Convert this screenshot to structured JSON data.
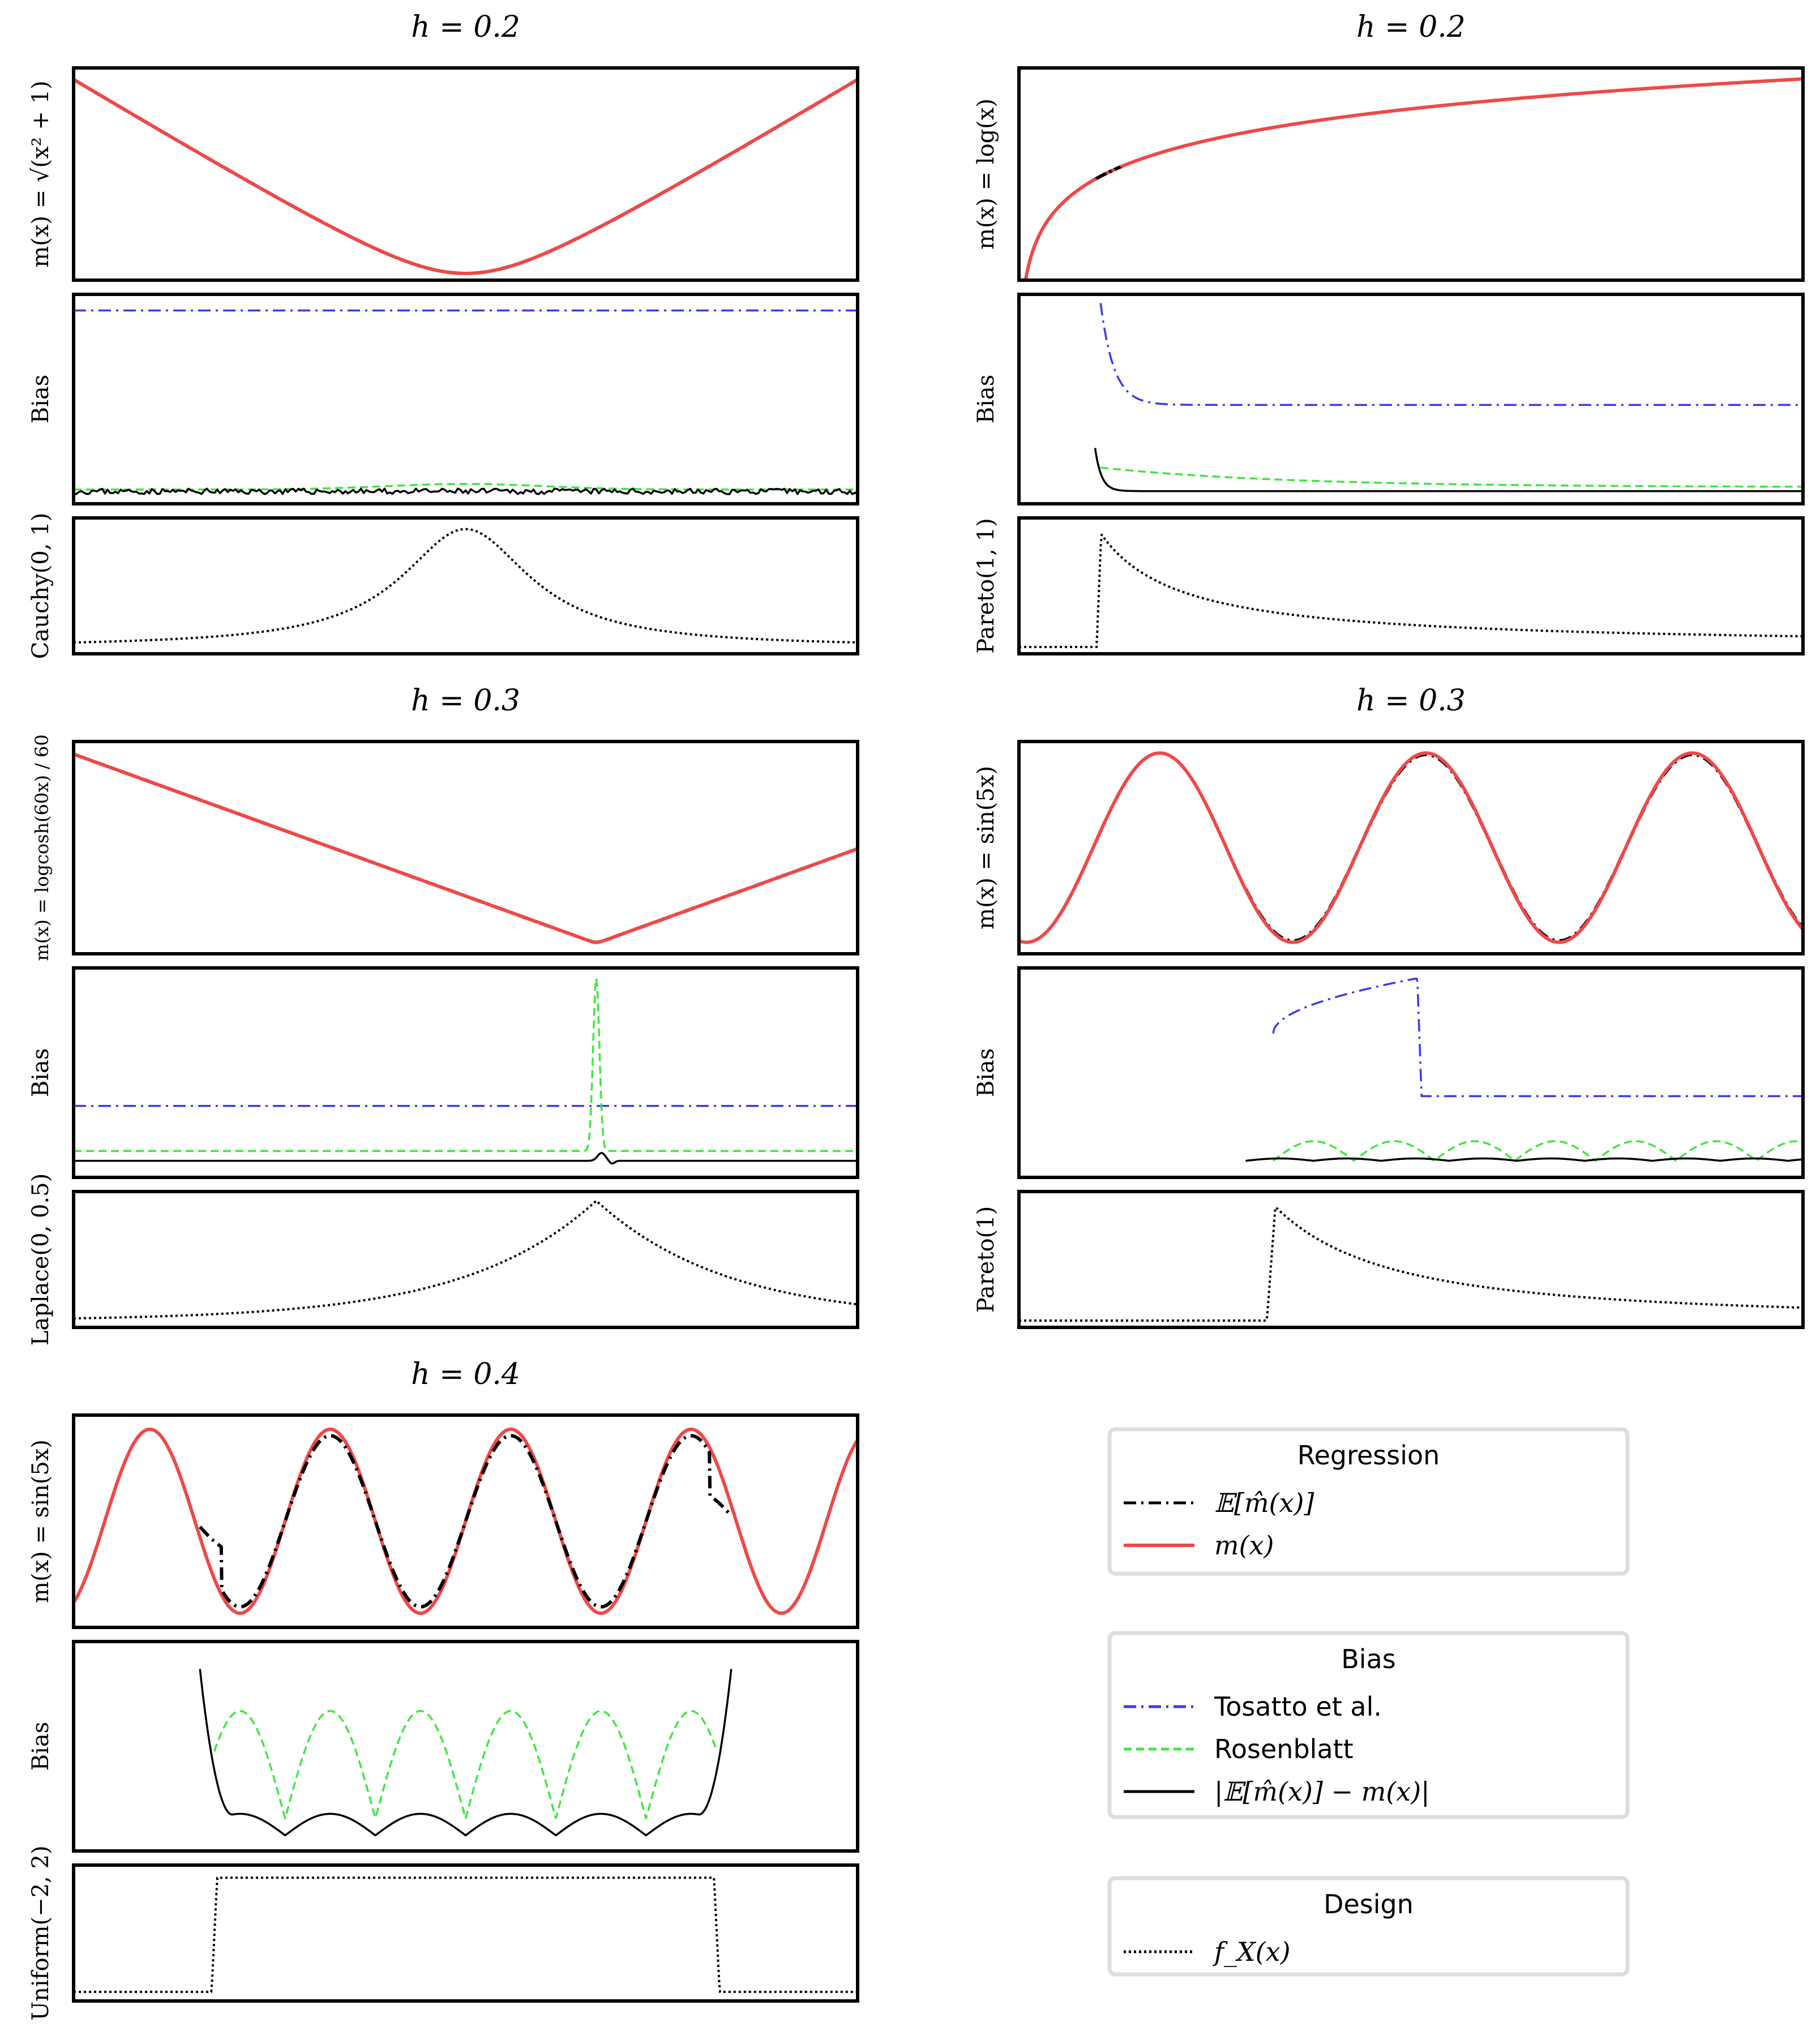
{
  "colors": {
    "regression_mean": "#000000",
    "true_function": "#f04848",
    "tosatto": "#3a3aee",
    "rosenblatt": "#3ee83e",
    "abs_bias": "#000000",
    "design": "#000000",
    "frame": "#000000",
    "legend_border": "#dddddd"
  },
  "chart_data": [
    {
      "type": "line",
      "title": "h = 0.2",
      "h": 0.2,
      "regression": {
        "ylabel": "m(x) = √(x² + 1)",
        "function": "sqrt(x^2+1)",
        "xlim": [
          -5,
          5
        ]
      },
      "bias": {
        "ylabel": "Bias",
        "tosatto": "flat high",
        "rosenblatt": "near zero, small bump at center",
        "abs_bias": "near zero, noisy"
      },
      "design": {
        "ylabel": "Cauchy(0, 1)",
        "density": "cauchy(0,1)"
      }
    },
    {
      "type": "line",
      "title": "h = 0.2",
      "h": 0.2,
      "regression": {
        "ylabel": "m(x) = log(x)",
        "function": "log(x)",
        "xlim": [
          0.01,
          10
        ]
      },
      "bias": {
        "ylabel": "Bias",
        "tosatto": "decays from high near x=1 to a plateau",
        "rosenblatt": "small, slowly decaying",
        "abs_bias": "spike at x=1 then near zero"
      },
      "design": {
        "ylabel": "Pareto(1, 1)",
        "density": "pareto, support x>1"
      }
    },
    {
      "type": "line",
      "title": "h = 0.3",
      "h": 0.3,
      "regression": {
        "ylabel": "m(x) = logcosh(60x) / 60",
        "function": "logcosh(60x)/60",
        "xlim": [
          -2,
          1
        ]
      },
      "bias": {
        "ylabel": "Bias",
        "tosatto": "flat",
        "rosenblatt": "flat with sharp peak at x=0",
        "abs_bias": "near zero, small bump at x=0"
      },
      "design": {
        "ylabel": "Laplace(0, 0.5)",
        "density": "laplace(0,0.5)"
      }
    },
    {
      "type": "line",
      "title": "h = 0.3",
      "h": 0.3,
      "regression": {
        "ylabel": "m(x) = sin(5x)",
        "function": "sin(5x)",
        "xlim": [
          -0.35,
          3.35
        ]
      },
      "bias": {
        "ylabel": "Bias",
        "tosatto": "rises after x=1 then drops to a plateau",
        "rosenblatt": "periodic humps",
        "abs_bias": "near zero, small oscillation"
      },
      "design": {
        "ylabel": "Pareto(1)",
        "density": "pareto, support x>1"
      }
    },
    {
      "type": "line",
      "title": "h = 0.4",
      "h": 0.4,
      "regression": {
        "ylabel": "m(x) = sin(5x)",
        "function": "sin(5x)",
        "xlim": [
          -2.73,
          2.73
        ]
      },
      "bias": {
        "ylabel": "Bias",
        "rosenblatt": "periodic arches",
        "abs_bias": "large at boundaries, small periodic arches inside"
      },
      "design": {
        "ylabel": "Uniform(−2, 2)",
        "density": "uniform(-2,2)"
      }
    }
  ],
  "legends": [
    {
      "title": "Regression",
      "entries": [
        {
          "label": "𝔼[m̂(x)]",
          "style": "dashdot",
          "color": "#000000"
        },
        {
          "label": "m(x)",
          "style": "solid",
          "color": "#f04848"
        }
      ]
    },
    {
      "title": "Bias",
      "entries": [
        {
          "label": "Tosatto et al.",
          "style": "dashdot",
          "color": "#3a3aee"
        },
        {
          "label": "Rosenblatt",
          "style": "dashed",
          "color": "#3ee83e"
        },
        {
          "label": "|𝔼[m̂(x)] − m(x)|",
          "style": "solid",
          "color": "#000000"
        }
      ]
    },
    {
      "title": "Design",
      "entries": [
        {
          "label": "f_X(x)",
          "style": "dotted",
          "color": "#000000"
        }
      ]
    }
  ]
}
